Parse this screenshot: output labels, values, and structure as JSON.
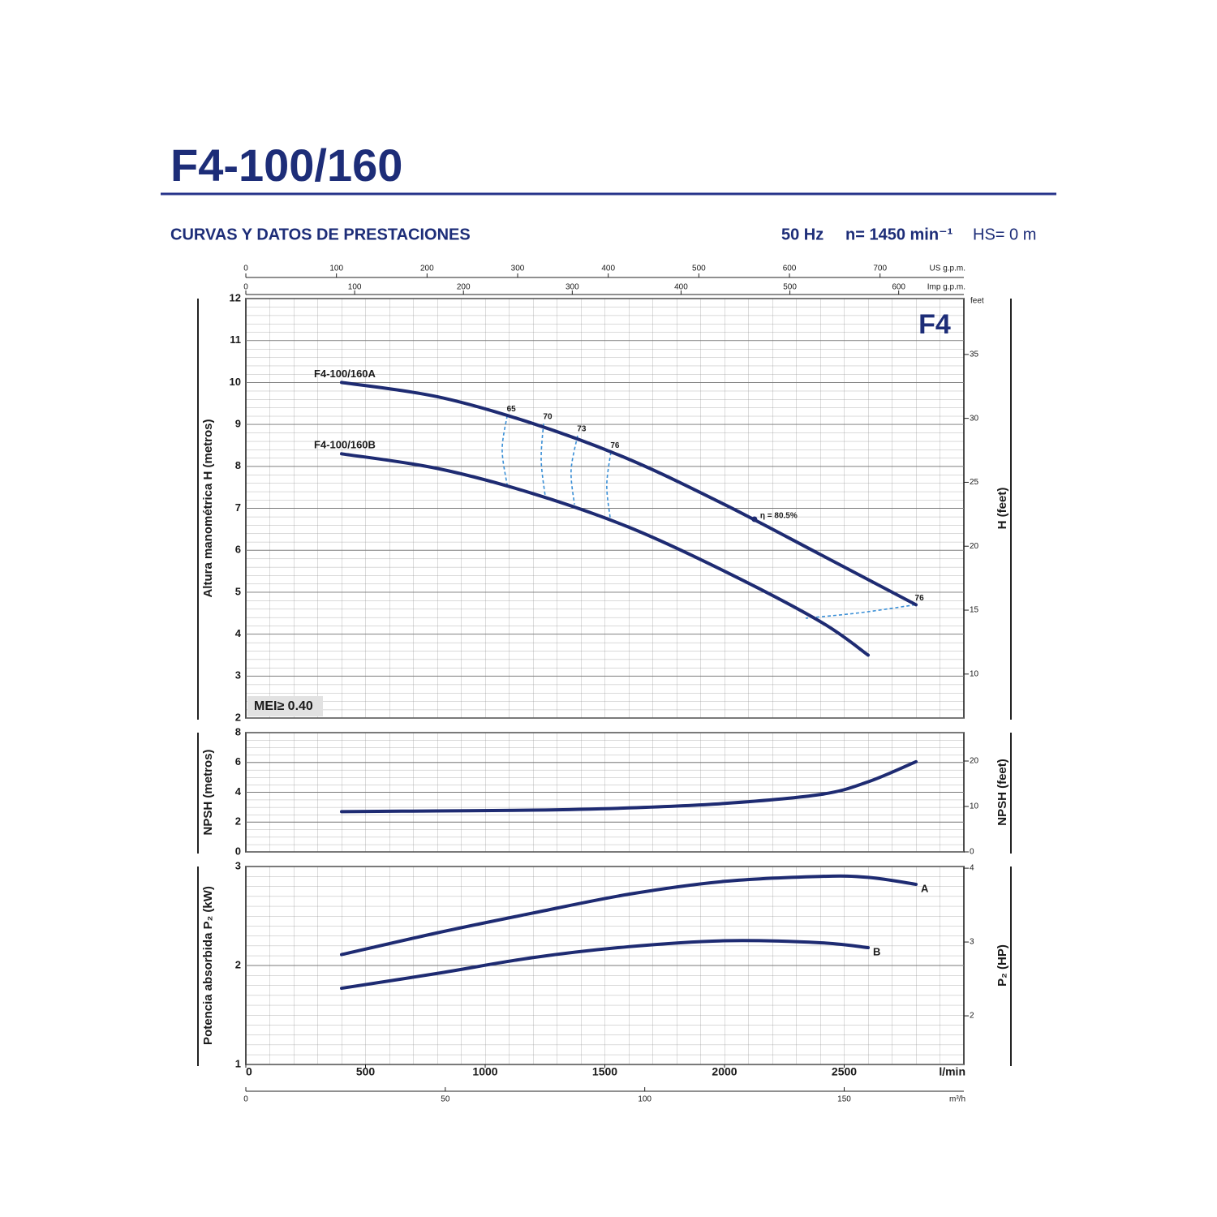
{
  "header": {
    "title": "F4-100/160",
    "subtitle": "CURVAS Y DATOS DE PRESTACIONES",
    "frequency": "50 Hz",
    "speed": "n= 1450 min⁻¹",
    "suction": "HS= 0 m"
  },
  "chart_data": [
    {
      "type": "line",
      "ylabel": "Altura manométrica H (metros)",
      "y2label": "H (feet)",
      "y2unit": "feet",
      "badge": "F4",
      "mei": "MEI≥ 0.40",
      "color": "#1e2b72",
      "grid": true,
      "xlim": [
        0,
        3000
      ],
      "ylim": [
        2,
        12
      ],
      "yticks": [
        2,
        3,
        4,
        5,
        6,
        7,
        8,
        9,
        10,
        11,
        12
      ],
      "y2lim": [
        6.5617,
        39.3701
      ],
      "y2ticks": [
        10,
        15,
        20,
        25,
        30,
        35
      ],
      "top_axes": [
        {
          "label": "US g.p.m.",
          "lim": [
            0,
            792.5
          ],
          "ticks": [
            0,
            100,
            200,
            300,
            400,
            500,
            600,
            700
          ]
        },
        {
          "label": "Imp g.p.m.",
          "lim": [
            0,
            659.9
          ],
          "ticks": [
            0,
            100,
            200,
            300,
            400,
            500,
            600
          ]
        }
      ],
      "series": [
        {
          "name": "F4-100/160A",
          "x": [
            400,
            800,
            1200,
            1600,
            2000,
            2400,
            2800
          ],
          "values": [
            10.0,
            9.66,
            9.02,
            8.17,
            7.09,
            5.9,
            4.7
          ]
        },
        {
          "name": "F4-100/160B",
          "x": [
            400,
            800,
            1200,
            1600,
            2000,
            2400,
            2600
          ],
          "values": [
            8.3,
            7.95,
            7.35,
            6.55,
            5.5,
            4.3,
            3.5
          ]
        }
      ],
      "efficiency_color": "#3a8fd6",
      "efficiency_curves": [
        {
          "label": "65",
          "x": [
            1092,
            1071,
            1092
          ],
          "values": [
            9.21,
            8.4,
            7.55
          ]
        },
        {
          "label": "70",
          "x": [
            1244,
            1234,
            1251
          ],
          "values": [
            9.02,
            8.15,
            7.28
          ]
        },
        {
          "label": "73",
          "x": [
            1386,
            1359,
            1373
          ],
          "values": [
            8.73,
            7.9,
            7.09
          ]
        },
        {
          "label": "76",
          "x": [
            1525,
            1508,
            1522
          ],
          "values": [
            8.34,
            7.55,
            6.78
          ]
        },
        {
          "label": "76",
          "x": [
            2797,
            2566,
            2339
          ],
          "values": [
            4.7,
            4.51,
            4.38
          ]
        }
      ],
      "best_point": {
        "label": "η = 80.5%",
        "x": 2125,
        "value": 6.74
      }
    },
    {
      "type": "line",
      "ylabel": "NPSH (metros)",
      "y2label": "NPSH (feet)",
      "color": "#1e2b72",
      "grid": true,
      "xlim": [
        0,
        3000
      ],
      "ylim": [
        0,
        8
      ],
      "yticks": [
        0,
        2,
        4,
        6,
        8
      ],
      "y2lim": [
        0,
        26.247
      ],
      "y2ticks": [
        0,
        10,
        20
      ],
      "series": [
        {
          "name": null,
          "x": [
            400,
            800,
            1200,
            1600,
            2000,
            2400,
            2600,
            2800
          ],
          "values": [
            2.7,
            2.75,
            2.8,
            2.95,
            3.25,
            3.85,
            4.7,
            6.05
          ]
        }
      ]
    },
    {
      "type": "line",
      "ylabel": "Potencia absorbida P₂ (kW)",
      "y2label": "P₂ (HP)",
      "color": "#1e2b72",
      "grid": true,
      "xlim": [
        0,
        3000
      ],
      "xticks": [
        0,
        500,
        1000,
        1500,
        2000,
        2500
      ],
      "xlabel": "l/min",
      "ylim": [
        1,
        3
      ],
      "yticks": [
        1,
        2,
        3
      ],
      "y2lim": [
        1.341,
        4.023
      ],
      "y2ticks": [
        2,
        3,
        4
      ],
      "bottom_axis": {
        "label": "m³/h",
        "lim": [
          0,
          180
        ],
        "ticks": [
          0,
          50,
          100,
          150
        ]
      },
      "series": [
        {
          "name": "A",
          "x": [
            400,
            800,
            1200,
            1600,
            2000,
            2400,
            2600,
            2800
          ],
          "values": [
            2.11,
            2.33,
            2.53,
            2.72,
            2.85,
            2.9,
            2.89,
            2.82
          ]
        },
        {
          "name": "B",
          "x": [
            400,
            800,
            1200,
            1600,
            2000,
            2400,
            2600
          ],
          "values": [
            1.77,
            1.92,
            2.08,
            2.19,
            2.25,
            2.23,
            2.18
          ]
        }
      ]
    }
  ]
}
